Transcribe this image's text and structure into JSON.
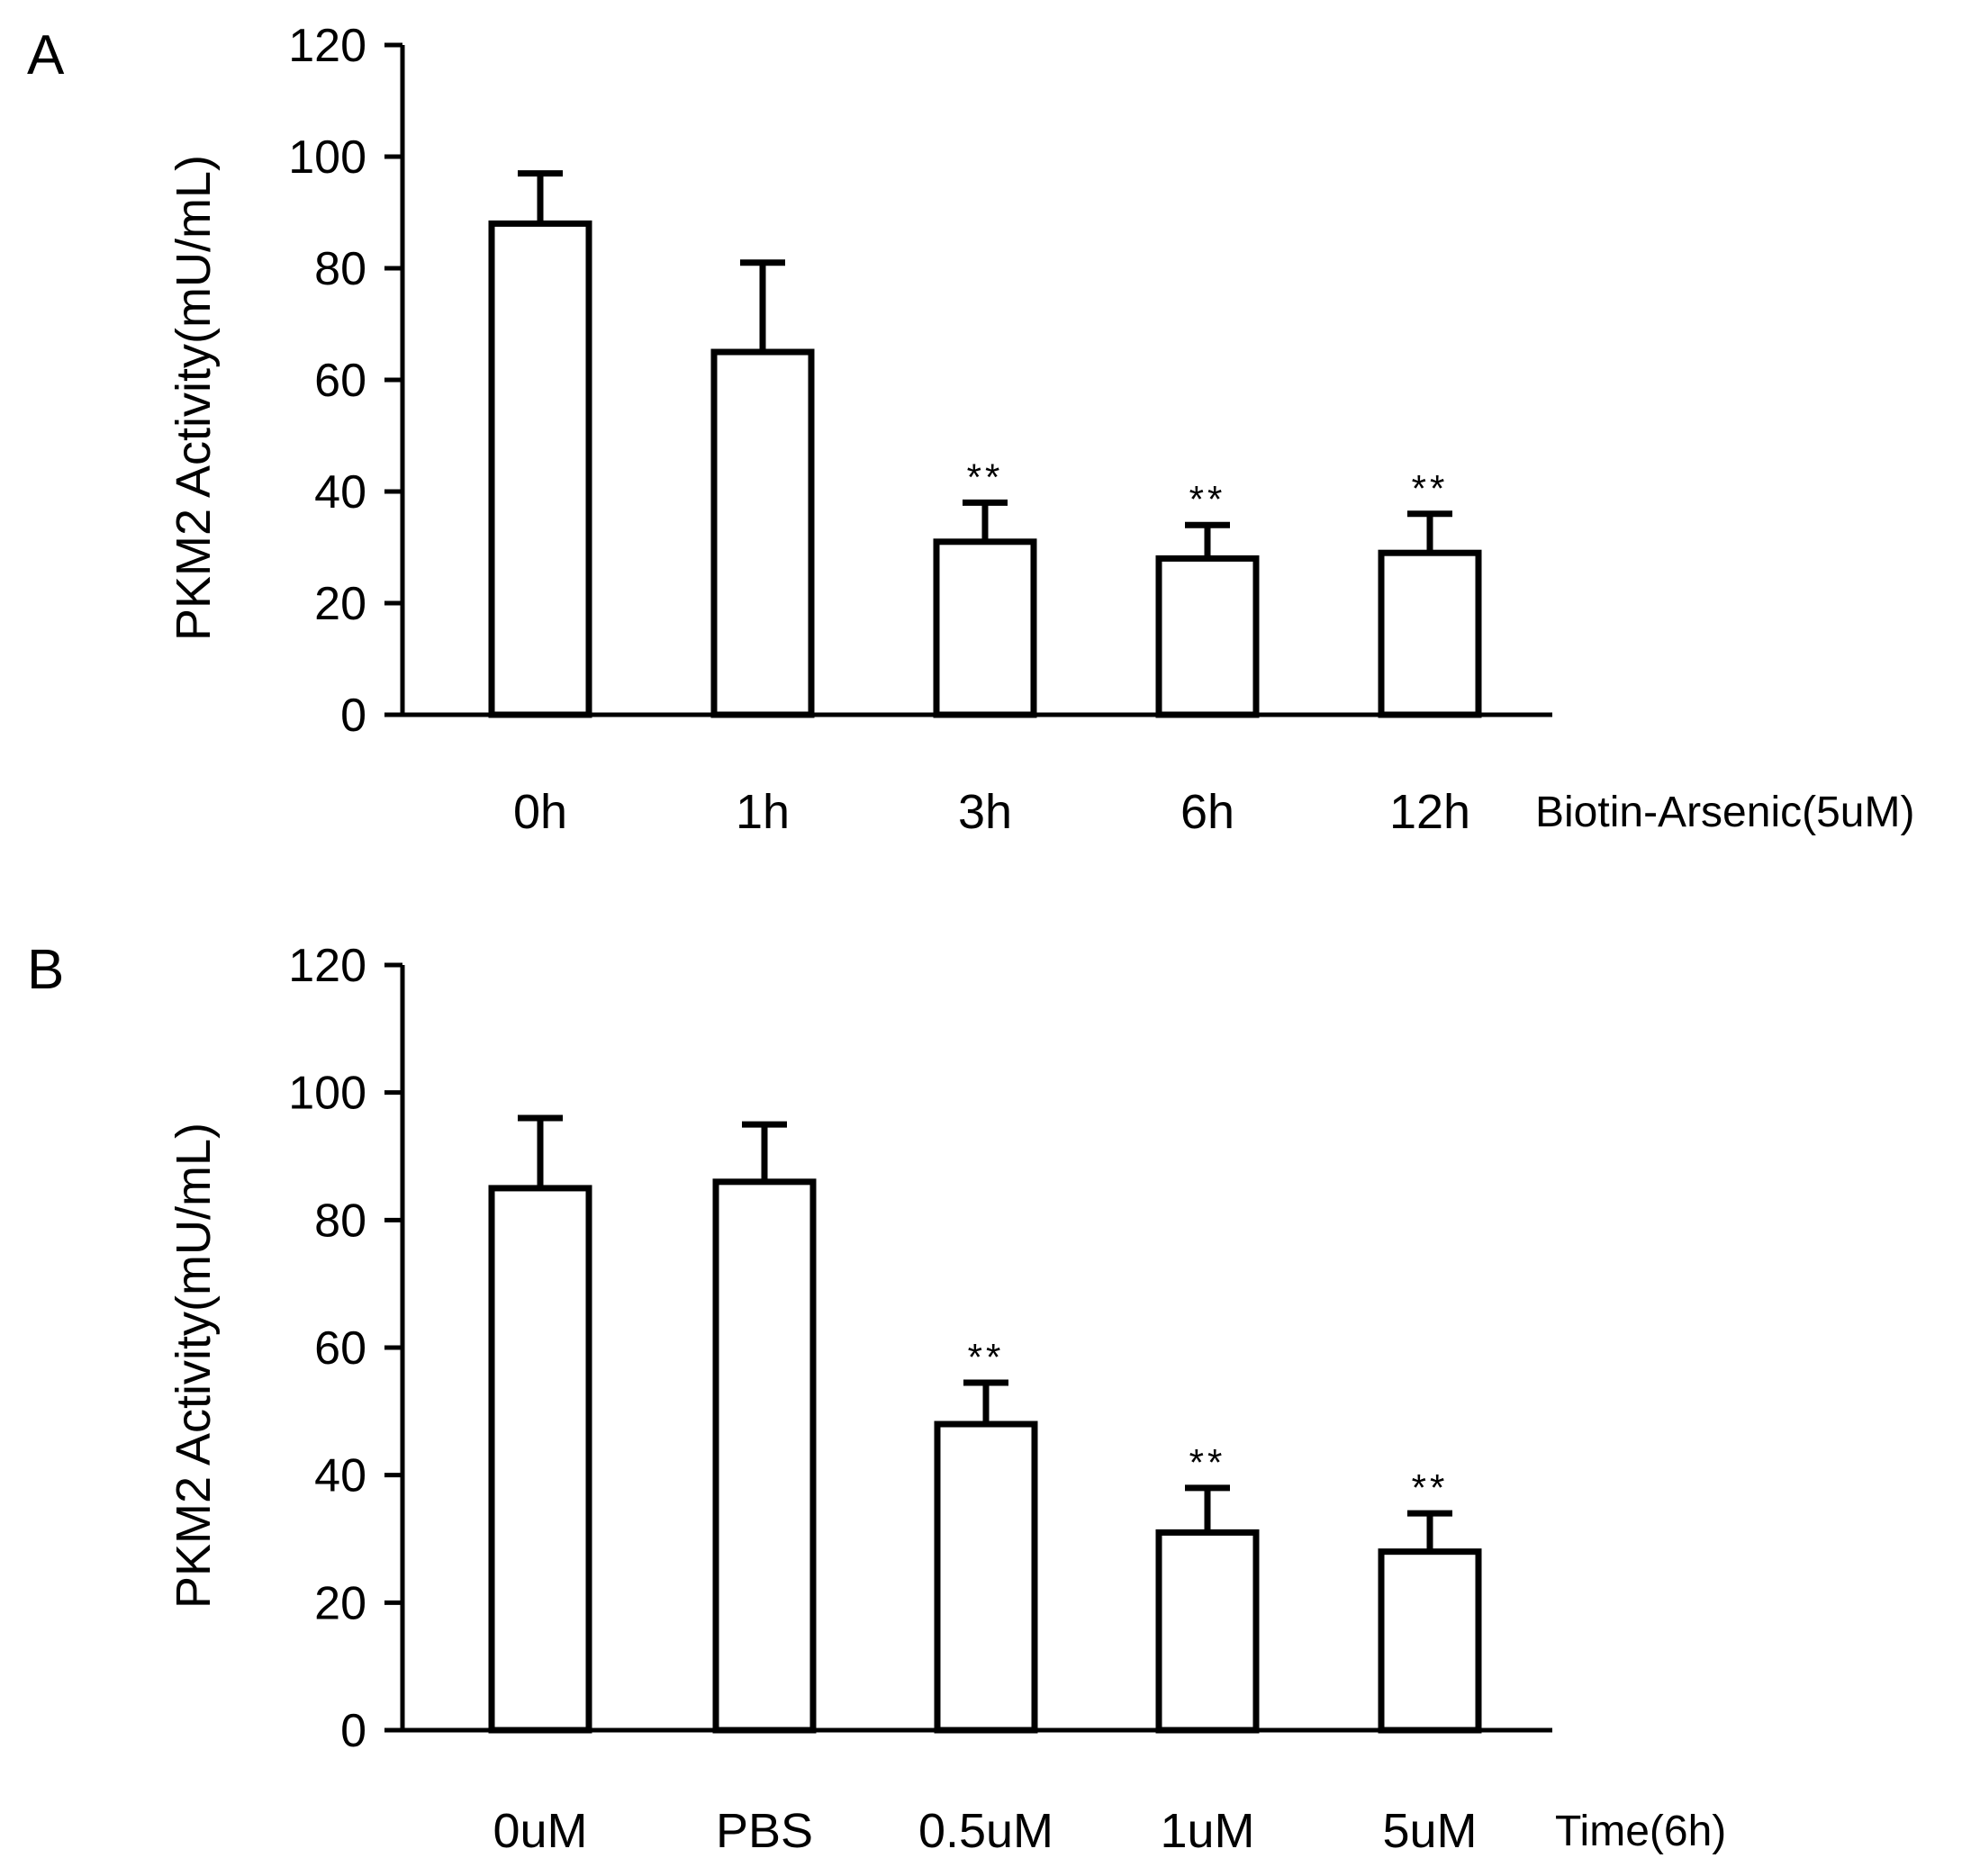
{
  "chart_data": [
    {
      "type": "bar",
      "panel_label": "A",
      "title": "",
      "xlabel": "Biotin-Arsenic(5uM)",
      "ylabel": "PKM2  Activity(mU/mL)",
      "ylim": [
        0,
        120
      ],
      "yticks": [
        0,
        20,
        40,
        60,
        80,
        100,
        120
      ],
      "categories": [
        "0h",
        "1h",
        "3h",
        "6h",
        "12h"
      ],
      "values": [
        88,
        65,
        31,
        28,
        29
      ],
      "errors": [
        9,
        16,
        7,
        6,
        7
      ],
      "significance": [
        "",
        "",
        "**",
        "**",
        "**"
      ],
      "grid": false
    },
    {
      "type": "bar",
      "panel_label": "B",
      "title": "",
      "xlabel": "Time(6h)",
      "ylabel": "PKM2  Activity(mU/mL)",
      "ylim": [
        0,
        120
      ],
      "yticks": [
        0,
        20,
        40,
        60,
        80,
        100,
        120
      ],
      "categories": [
        "0uM",
        "PBS",
        "0.5uM",
        "1uM",
        "5uM"
      ],
      "values": [
        85,
        86,
        48,
        31,
        28
      ],
      "errors": [
        11,
        9,
        6.5,
        7,
        6
      ],
      "significance": [
        "",
        "",
        "**",
        "**",
        "**"
      ],
      "grid": false
    }
  ]
}
